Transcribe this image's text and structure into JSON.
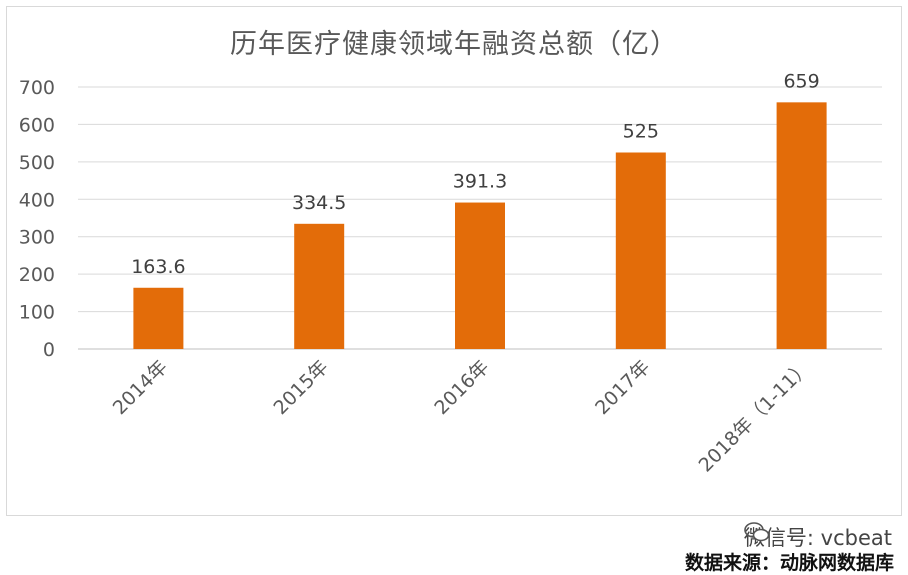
{
  "chart_data": {
    "type": "bar",
    "title": "历年医疗健康领域年融资总额（亿）",
    "categories": [
      "2014年",
      "2015年",
      "2016年",
      "2017年",
      "2018年（1-11）"
    ],
    "values": [
      163.6,
      334.5,
      391.3,
      525,
      659
    ],
    "value_labels": [
      "163.6",
      "334.5",
      "391.3",
      "525",
      "659"
    ],
    "yticks": [
      "0",
      "100",
      "200",
      "300",
      "400",
      "500",
      "600",
      "700"
    ],
    "ylim": [
      0,
      700
    ],
    "grid": true,
    "bar_color": "#e36c09"
  },
  "watermark": {
    "icon": "wechat-icon",
    "text": "微信号: vcbeat"
  },
  "source": "数据来源：动脉网数据库"
}
